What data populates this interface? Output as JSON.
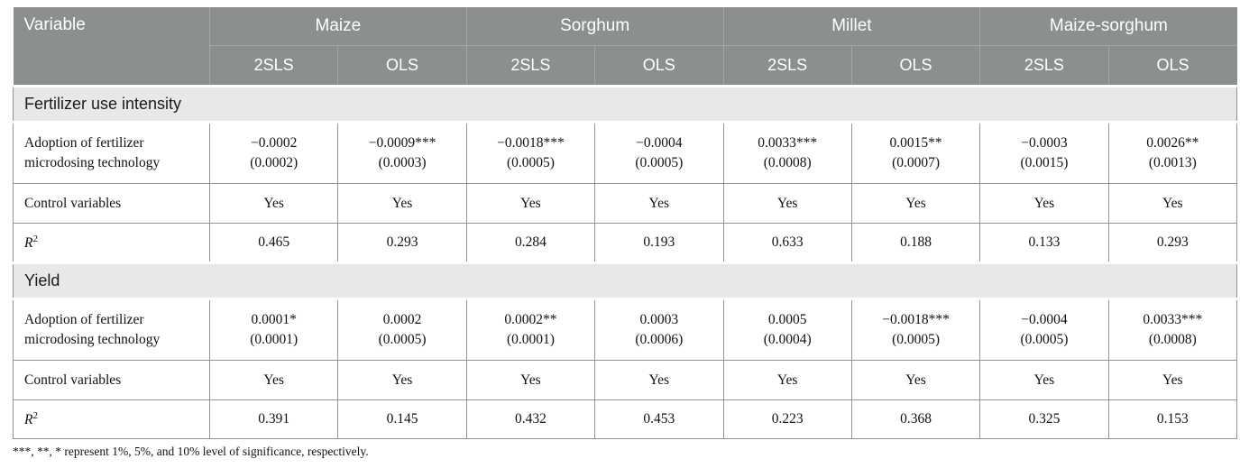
{
  "colors": {
    "header_bg": "#8b8f90",
    "header_text": "#ffffff",
    "header_divider": "#a2a6a6",
    "section_bg": "#e7e8e8",
    "cell_border": "#8f9394",
    "body_text": "#111111"
  },
  "table": {
    "header": {
      "variable_label": "Variable",
      "groups": [
        {
          "label": "Maize"
        },
        {
          "label": "Sorghum"
        },
        {
          "label": "Millet"
        },
        {
          "label": "Maize-sorghum"
        }
      ],
      "sub_columns": [
        "2SLS",
        "OLS",
        "2SLS",
        "OLS",
        "2SLS",
        "OLS",
        "2SLS",
        "OLS"
      ]
    },
    "sections": [
      {
        "title": "Fertilizer use intensity",
        "rows": [
          {
            "label": "Adoption of fertilizer microdosing technology",
            "values": [
              {
                "coef": "−0.0002",
                "se": "(0.0002)"
              },
              {
                "coef": "−0.0009***",
                "se": "(0.0003)"
              },
              {
                "coef": "−0.0018***",
                "se": "(0.0005)"
              },
              {
                "coef": "−0.0004",
                "se": "(0.0005)"
              },
              {
                "coef": "0.0033***",
                "se": "(0.0008)"
              },
              {
                "coef": "0.0015**",
                "se": "(0.0007)"
              },
              {
                "coef": "−0.0003",
                "se": "(0.0015)"
              },
              {
                "coef": "0.0026**",
                "se": "(0.0013)"
              }
            ]
          },
          {
            "label": "Control variables",
            "values": [
              "Yes",
              "Yes",
              "Yes",
              "Yes",
              "Yes",
              "Yes",
              "Yes",
              "Yes"
            ]
          },
          {
            "label_base": "R",
            "label_sup": "2",
            "values": [
              "0.465",
              "0.293",
              "0.284",
              "0.193",
              "0.633",
              "0.188",
              "0.133",
              "0.293"
            ]
          }
        ]
      },
      {
        "title": "Yield",
        "rows": [
          {
            "label": "Adoption of fertilizer microdosing technology",
            "values": [
              {
                "coef": "0.0001*",
                "se": "(0.0001)"
              },
              {
                "coef": "0.0002",
                "se": "(0.0005)"
              },
              {
                "coef": "0.0002**",
                "se": "(0.0001)"
              },
              {
                "coef": "0.0003",
                "se": "(0.0006)"
              },
              {
                "coef": "0.0005",
                "se": "(0.0004)"
              },
              {
                "coef": "−0.0018***",
                "se": "(0.0005)"
              },
              {
                "coef": "−0.0004",
                "se": "(0.0005)"
              },
              {
                "coef": "0.0033***",
                "se": "(0.0008)"
              }
            ]
          },
          {
            "label": "Control variables",
            "values": [
              "Yes",
              "Yes",
              "Yes",
              "Yes",
              "Yes",
              "Yes",
              "Yes",
              "Yes"
            ]
          },
          {
            "label_base": "R",
            "label_sup": "2",
            "values": [
              "0.391",
              "0.145",
              "0.432",
              "0.453",
              "0.223",
              "0.368",
              "0.325",
              "0.153"
            ]
          }
        ]
      }
    ],
    "footnote": "***, **, * represent 1%, 5%, and 10% level of significance, respectively."
  }
}
